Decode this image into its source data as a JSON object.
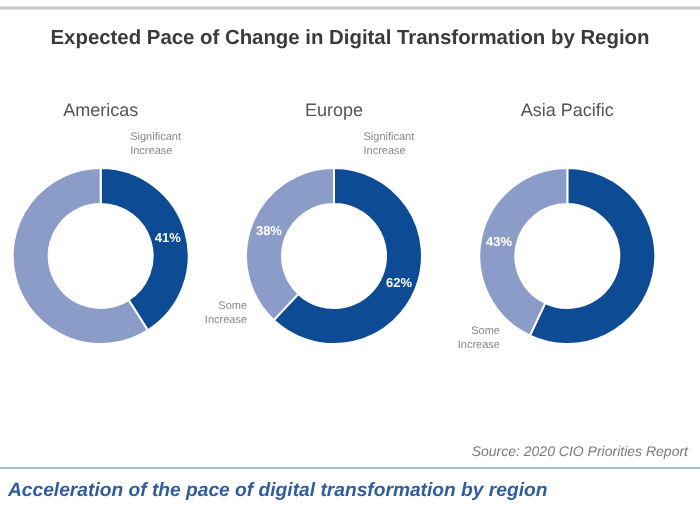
{
  "chart_data": [
    {
      "type": "other",
      "title": "Expected Pace of Change in Digital Transformation by Region",
      "annotations": [
        "Source: 2020 CIO Priorities Report",
        "Acceleration of the pace of digital transformation by region"
      ]
    },
    {
      "type": "donut",
      "title": "Americas",
      "categories": [
        "Significant Increase",
        null
      ],
      "values": [
        41,
        59
      ],
      "colors": [
        "#0d4c94",
        "#8c9cc8"
      ],
      "value_labels": [
        "41%",
        null
      ]
    },
    {
      "type": "donut",
      "title": "Europe",
      "categories": [
        "Significant Increase",
        "Some Increase"
      ],
      "values": [
        62,
        38
      ],
      "colors": [
        "#0d4c94",
        "#8c9cc8"
      ],
      "value_labels": [
        "62%",
        "38%"
      ]
    },
    {
      "type": "donut",
      "title": "Asia Pacific",
      "categories": [
        null,
        "Some Increase"
      ],
      "values": [
        57,
        43
      ],
      "colors": [
        "#0d4c94",
        "#8c9cc8"
      ],
      "value_labels": [
        null,
        "43%"
      ]
    }
  ]
}
